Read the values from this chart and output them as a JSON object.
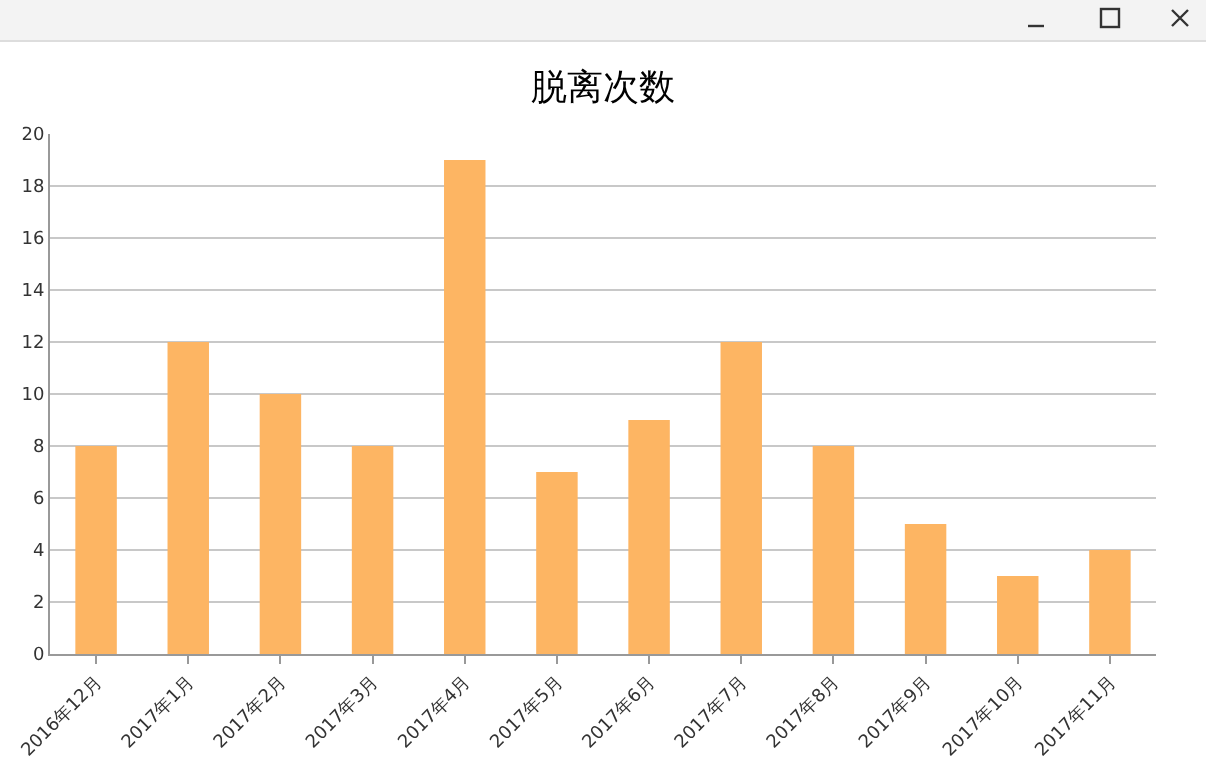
{
  "chart_data": {
    "type": "bar",
    "title": "脱离次数",
    "categories": [
      "2016年12月",
      "2017年1月",
      "2017年2月",
      "2017年3月",
      "2017年4月",
      "2017年5月",
      "2017年6月",
      "2017年7月",
      "2017年8月",
      "2017年9月",
      "2017年10月",
      "2017年11月"
    ],
    "values": [
      8,
      12,
      10,
      8,
      19,
      7,
      9,
      12,
      8,
      5,
      3,
      4
    ],
    "color": "#fdb563",
    "ylim": [
      0,
      20
    ],
    "yticks": [
      0,
      2,
      4,
      6,
      8,
      10,
      12,
      14,
      16,
      18,
      20
    ],
    "grid": "y"
  }
}
